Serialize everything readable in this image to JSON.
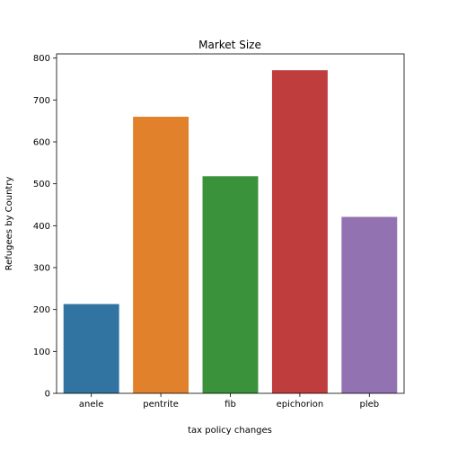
{
  "chart_data": {
    "type": "bar",
    "title": "Market Size",
    "xlabel": "tax policy changes",
    "ylabel": "Refugees by Country",
    "categories": [
      "anele",
      "pentrite",
      "fib",
      "epichorion",
      "pleb"
    ],
    "values": [
      213,
      660,
      518,
      771,
      421
    ],
    "colors": [
      "#3274a1",
      "#e1812c",
      "#3a923a",
      "#c03d3e",
      "#9372b2"
    ],
    "ylim": [
      0,
      810
    ],
    "yticks": [
      0,
      100,
      200,
      300,
      400,
      500,
      600,
      700,
      800
    ],
    "grid": false,
    "legend": "none"
  }
}
